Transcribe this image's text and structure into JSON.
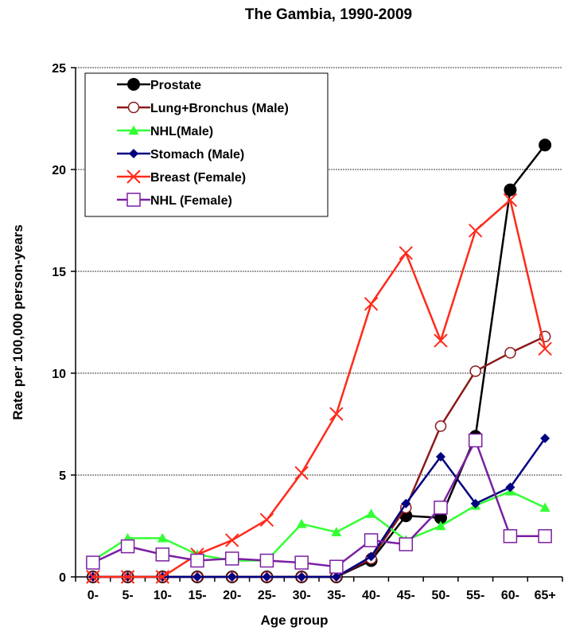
{
  "chart_data": {
    "type": "line",
    "title": "The Gambia, 1990-2009",
    "xlabel": "Age group",
    "ylabel": "Rate per 100,000 person-years",
    "categories": [
      "0-",
      "5-",
      "10-",
      "15-",
      "20-",
      "25-",
      "30-",
      "35-",
      "40-",
      "45-",
      "50-",
      "55-",
      "60-",
      "65+"
    ],
    "ylim": [
      0,
      25
    ],
    "yticks": [
      0,
      5,
      10,
      15,
      20,
      25
    ],
    "grid": "horizontal",
    "legend_position": "top-left",
    "series": [
      {
        "name": "Prostate",
        "color": "#000000",
        "marker": "filled-circle",
        "values": [
          0,
          0,
          0,
          0,
          0,
          0,
          0,
          0,
          0.8,
          3.0,
          2.9,
          6.9,
          19.0,
          21.2
        ]
      },
      {
        "name": "Lung+Bronchus (Male)",
        "color": "#8B1A1A",
        "marker": "open-circle",
        "values": [
          0,
          0,
          0,
          0,
          0,
          0,
          0,
          0,
          0.9,
          3.4,
          7.4,
          10.1,
          11.0,
          11.8
        ]
      },
      {
        "name": "NHL(Male)",
        "color": "#33FF33",
        "marker": "triangle",
        "values": [
          0.8,
          1.9,
          1.9,
          1.1,
          0.8,
          0.8,
          2.6,
          2.2,
          3.1,
          1.8,
          2.5,
          3.5,
          4.2,
          3.4
        ]
      },
      {
        "name": "Stomach (Male)",
        "color": "#000080",
        "marker": "diamond",
        "values": [
          0,
          0,
          0,
          0,
          0,
          0,
          0,
          0,
          1.0,
          3.6,
          5.9,
          3.6,
          4.4,
          6.8
        ]
      },
      {
        "name": "Breast (Female)",
        "color": "#FF2A1A",
        "marker": "x",
        "values": [
          0,
          0,
          0,
          1.1,
          1.8,
          2.8,
          5.1,
          8.0,
          13.4,
          15.9,
          11.6,
          17.0,
          18.5,
          11.2
        ]
      },
      {
        "name": "NHL (Female)",
        "color": "#7B1FA2",
        "marker": "open-square",
        "values": [
          0.7,
          1.5,
          1.1,
          0.8,
          0.9,
          0.8,
          0.7,
          0.5,
          1.8,
          1.6,
          3.4,
          6.7,
          2.0,
          2.0
        ]
      }
    ]
  }
}
